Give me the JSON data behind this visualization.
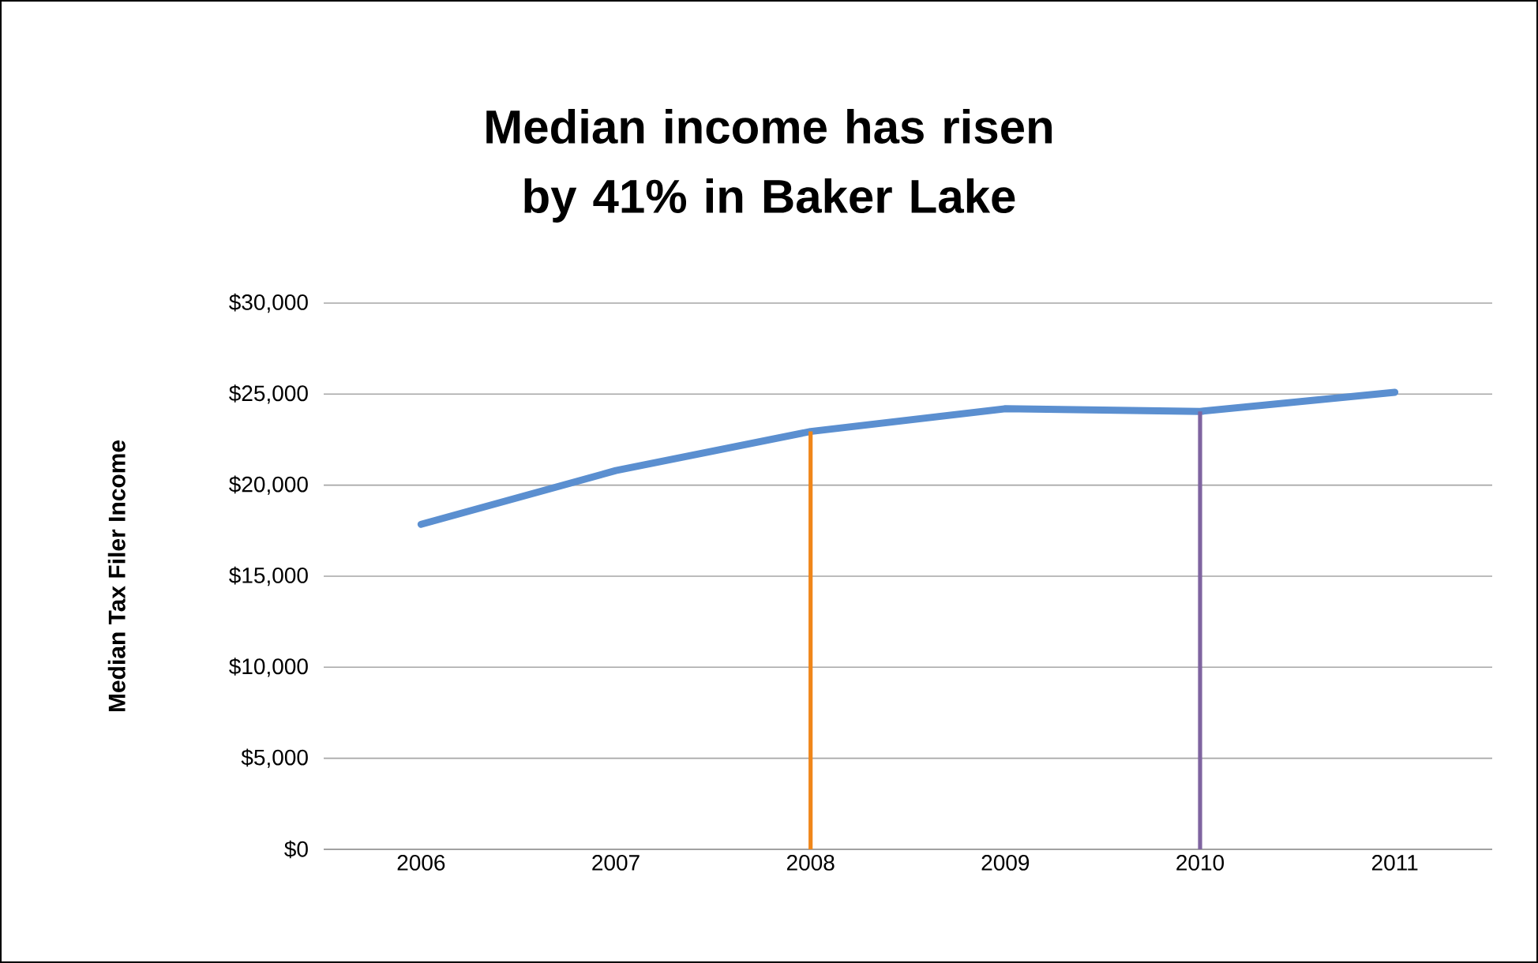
{
  "chart_data": {
    "type": "line",
    "title": "Median income has risen by 41% in Baker Lake",
    "ylabel": "Median Tax Filer Income",
    "x": [
      2006,
      2007,
      2008,
      2009,
      2010,
      2011
    ],
    "series": [
      {
        "color": "#5b8fd0",
        "values": [
          17850,
          20800,
          22950,
          24200,
          24050,
          25100
        ]
      }
    ],
    "xlim": [
      2005.5,
      2011.5
    ],
    "xticks": [
      2006,
      2007,
      2008,
      2009,
      2010,
      2011
    ],
    "ylim": [
      0,
      30000
    ],
    "yticks": [
      {
        "value": 0,
        "label": "$0"
      },
      {
        "value": 5000,
        "label": "$5,000"
      },
      {
        "value": 10000,
        "label": "$10,000"
      },
      {
        "value": 15000,
        "label": "$15,000"
      },
      {
        "value": 20000,
        "label": "$20,000"
      },
      {
        "value": 25000,
        "label": "$25,000"
      },
      {
        "value": 30000,
        "label": "$30,000"
      }
    ],
    "grid": "y",
    "marker": "none",
    "line_style": "solid",
    "ref_lines": [
      {
        "axis": "x",
        "value": 2008,
        "color": "#f0861a"
      },
      {
        "axis": "x",
        "value": 2010,
        "color": "#7f64a0"
      }
    ]
  }
}
